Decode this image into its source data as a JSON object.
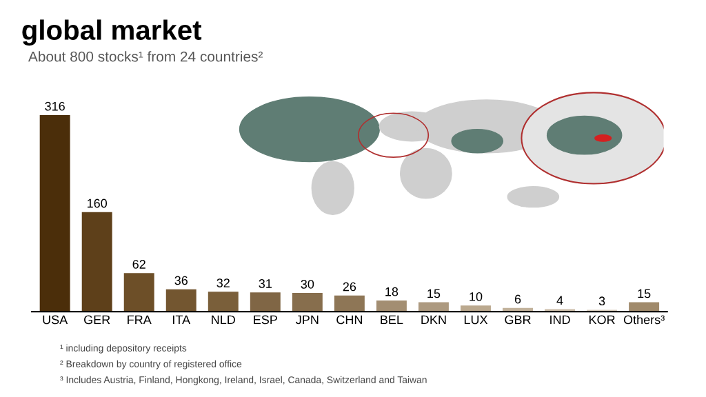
{
  "chart_data": {
    "type": "bar",
    "title": "global market",
    "subtitle": "About 800 stocks¹ from 24 countries²",
    "categories": [
      "USA",
      "GER",
      "FRA",
      "ITA",
      "NLD",
      "ESP",
      "JPN",
      "CHN",
      "BEL",
      "DKN",
      "LUX",
      "GBR",
      "IND",
      "KOR",
      "Others³"
    ],
    "values": [
      316,
      160,
      62,
      36,
      32,
      31,
      30,
      26,
      18,
      15,
      10,
      6,
      4,
      3,
      15
    ],
    "colors": [
      "#4b2e0a",
      "#5e401a",
      "#6d4f28",
      "#735630",
      "#7a5f3a",
      "#806645",
      "#876e4d",
      "#8e7656",
      "#a38e72",
      "#ad9a80",
      "#bba98f",
      "#c2b29b",
      "#cdbfab",
      "#dbd0c0",
      "#a08a6b"
    ],
    "tick_labels": "x",
    "grid": false,
    "data_labels": true,
    "annotations": [
      "¹ including depository receipts",
      "² Breakdown by country of registered office",
      "³ Includes Austria, Finland, Hongkong, Ireland, Israel, Canada, Switzerland and Taiwan"
    ]
  }
}
